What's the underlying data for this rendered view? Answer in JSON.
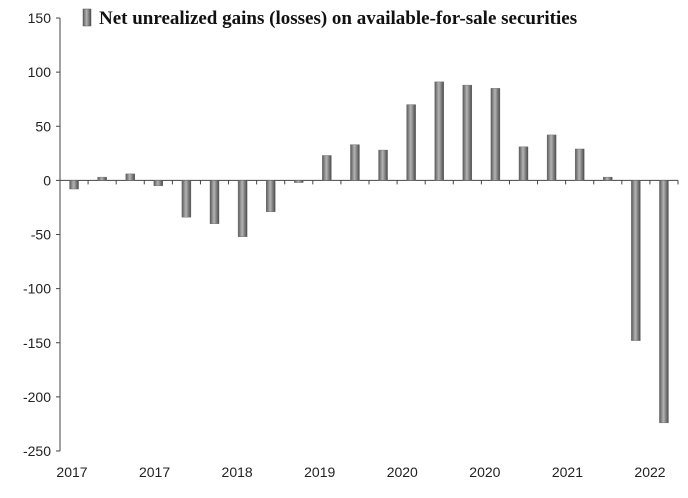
{
  "chart_data": {
    "type": "bar",
    "title": "",
    "xlabel": "",
    "ylabel": "",
    "ylim": [
      -250,
      150
    ],
    "yticks": [
      150,
      100,
      50,
      0,
      -50,
      -100,
      -150,
      -200,
      -250
    ],
    "grid": false,
    "legend": "top",
    "x_tick_labels": [
      "2017",
      "2017",
      "2018",
      "2019",
      "2020",
      "2020",
      "2021",
      "2022"
    ],
    "series": [
      {
        "name": "Net unrealized gains (losses) on available-for-sale securities",
        "color": "#8c8c8c",
        "values": [
          -8,
          3,
          6,
          -5,
          -34,
          -40,
          -52,
          -29,
          -2,
          23,
          33,
          28,
          70,
          91,
          88,
          85,
          31,
          42,
          29,
          3,
          -148,
          -224
        ]
      }
    ]
  }
}
